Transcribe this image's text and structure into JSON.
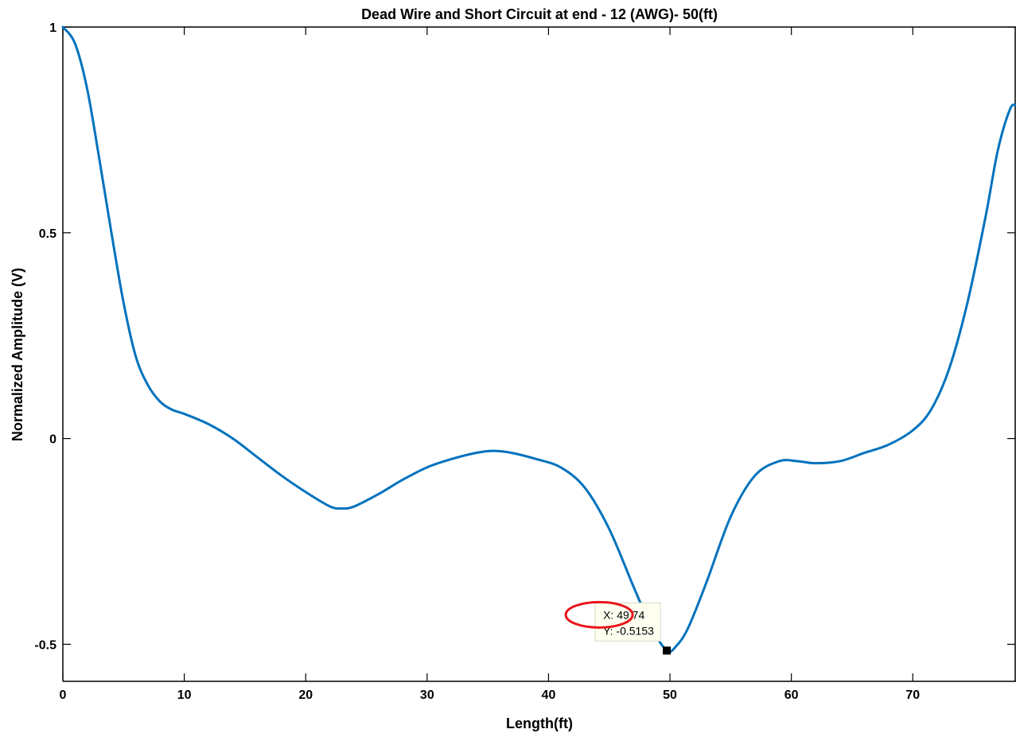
{
  "chart_data": {
    "type": "line",
    "title": "Dead Wire and Short Circuit at end - 12 (AWG)- 50(ft)",
    "xlabel": "Length(ft)",
    "ylabel": "Normalized Amplitude (V)",
    "xlim": [
      0,
      78.5
    ],
    "ylim": [
      -0.59,
      1.0
    ],
    "x_ticks": [
      0,
      10,
      20,
      30,
      40,
      50,
      60,
      70
    ],
    "y_ticks": [
      {
        "value": 1,
        "label": "1"
      },
      {
        "value": 0.5,
        "label": "0.5"
      },
      {
        "value": 0,
        "label": "0"
      },
      {
        "value": -0.5,
        "label": "-0.5"
      }
    ],
    "grid": false,
    "box": true,
    "line_color": "#0072BD",
    "series": [
      {
        "x": [
          0,
          1,
          2,
          3,
          4,
          5,
          6,
          7,
          8,
          9,
          10,
          12,
          14,
          16,
          18,
          20,
          22,
          23,
          24,
          26,
          28,
          30,
          32,
          34,
          35.5,
          37,
          39,
          41,
          43,
          45,
          47,
          48.5,
          49.74,
          50.5,
          51.5,
          53,
          55,
          57,
          59,
          60.5,
          62,
          64,
          66,
          68,
          70,
          71.5,
          73,
          74.5,
          76,
          77,
          78,
          78.5
        ],
        "y": [
          1.0,
          0.96,
          0.85,
          0.68,
          0.5,
          0.33,
          0.2,
          0.13,
          0.09,
          0.07,
          0.06,
          0.035,
          0.0,
          -0.045,
          -0.09,
          -0.13,
          -0.165,
          -0.17,
          -0.165,
          -0.135,
          -0.1,
          -0.07,
          -0.05,
          -0.035,
          -0.03,
          -0.035,
          -0.05,
          -0.07,
          -0.12,
          -0.22,
          -0.36,
          -0.46,
          -0.5153,
          -0.505,
          -0.46,
          -0.35,
          -0.19,
          -0.09,
          -0.055,
          -0.055,
          -0.06,
          -0.055,
          -0.035,
          -0.015,
          0.02,
          0.07,
          0.17,
          0.33,
          0.54,
          0.7,
          0.8,
          0.81
        ]
      }
    ],
    "datatip": {
      "x": 49.74,
      "y": -0.5153,
      "x_text": "X: 49.74",
      "y_text": "Y: -0.5153",
      "highlight_color": "#E8141B",
      "marker_color": "#000000"
    }
  }
}
